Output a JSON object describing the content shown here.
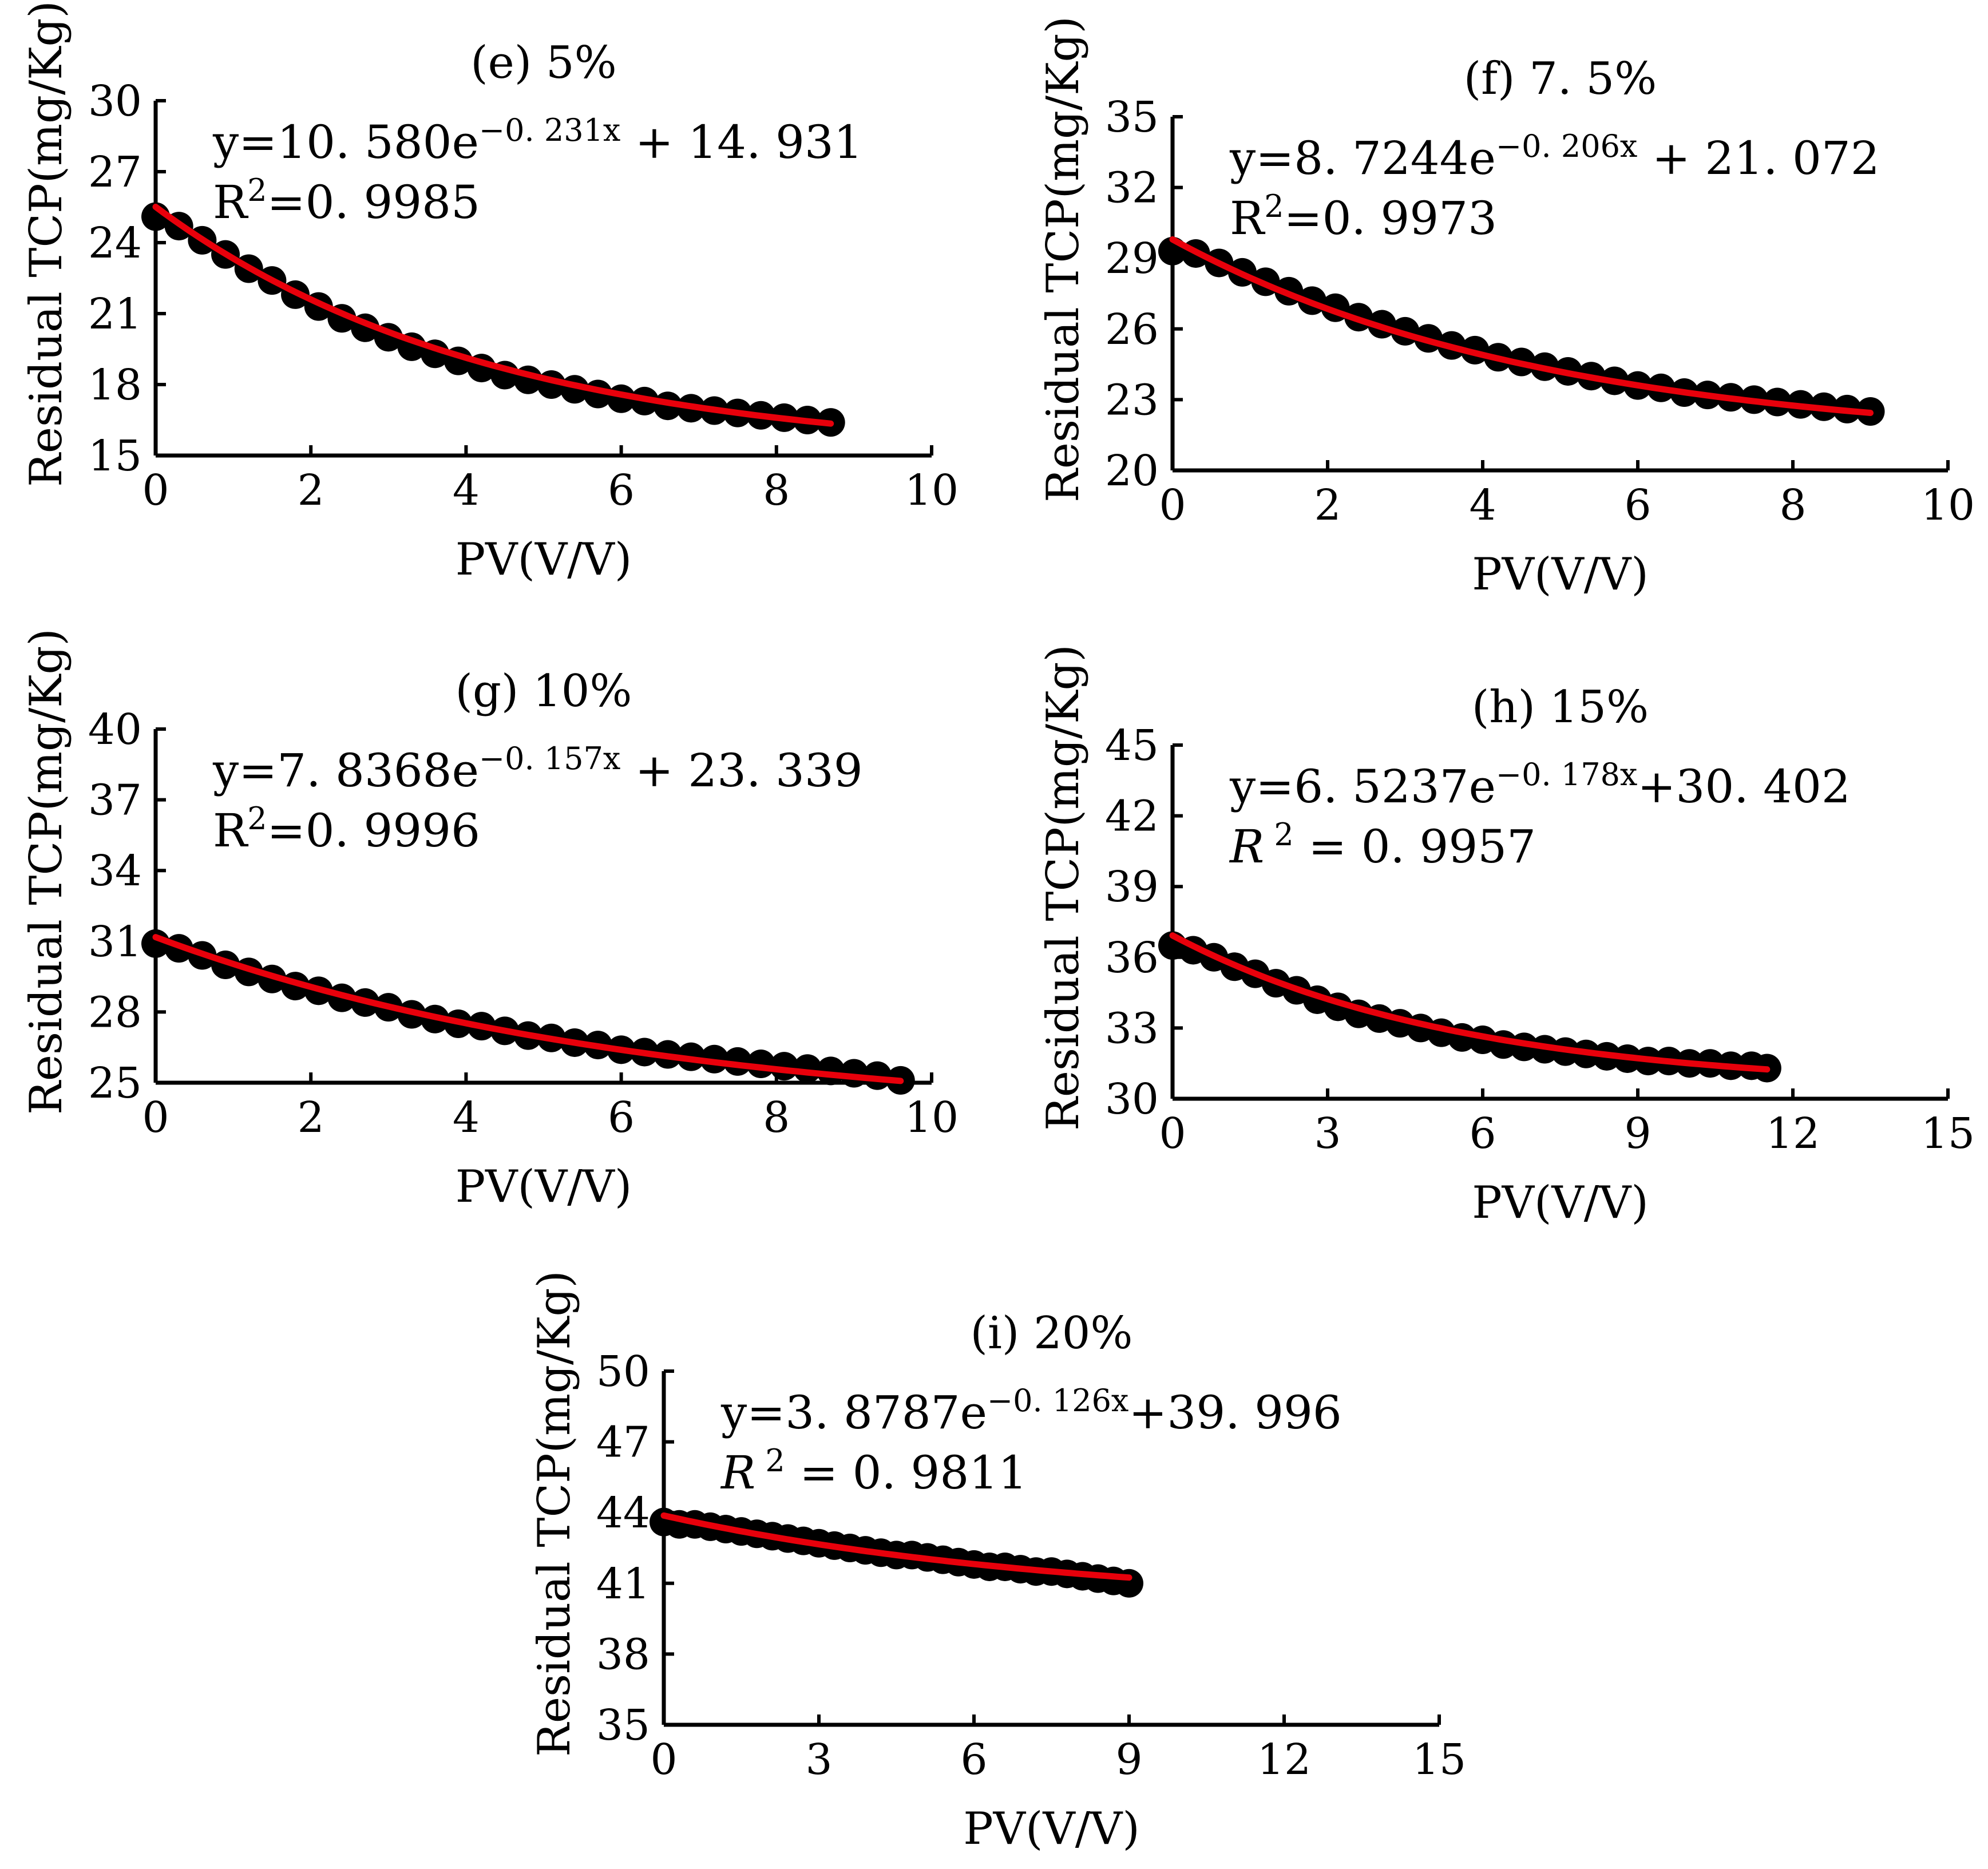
{
  "chart_data": [
    {
      "id": "e",
      "type": "scatter",
      "title": "(e)  5%",
      "xlabel": "PV(V/V)",
      "ylabel": "Residual  TCP(mg/Kg)",
      "xlim": [
        0,
        10
      ],
      "ylim": [
        15,
        30
      ],
      "xticks": [
        0,
        2,
        4,
        6,
        8,
        10
      ],
      "yticks": [
        15,
        18,
        21,
        24,
        27,
        30
      ],
      "fit": {
        "a": 10.58,
        "b": 0.231,
        "c": 14.931
      },
      "x_max": 8.7,
      "equation": {
        "prefix": "y=10. 580e",
        "exponent": "−0. 231x",
        "suffix": " +  14. 931"
      },
      "r2": {
        "label": "R",
        "sup": "2",
        "value": "=0. 9985",
        "italic": false
      },
      "series": [
        {
          "x": [
            0.0,
            0.3,
            0.6,
            0.9,
            1.2,
            1.5,
            1.8,
            2.1,
            2.4,
            2.7,
            3.0,
            3.3,
            3.6,
            3.9,
            4.2,
            4.5,
            4.8,
            5.1,
            5.4,
            5.7,
            6.0,
            6.3,
            6.6,
            6.9,
            7.2,
            7.5,
            7.8,
            8.1,
            8.4,
            8.7
          ],
          "y": [
            25.1,
            24.7,
            24.1,
            23.5,
            22.9,
            22.4,
            21.8,
            21.3,
            20.8,
            20.4,
            20.0,
            19.6,
            19.3,
            19.0,
            18.7,
            18.4,
            18.2,
            18.0,
            17.8,
            17.6,
            17.4,
            17.3,
            17.1,
            17.0,
            16.9,
            16.8,
            16.7,
            16.6,
            16.5,
            16.4
          ]
        }
      ]
    },
    {
      "id": "f",
      "type": "scatter",
      "title": "(f)  7. 5%",
      "xlabel": "PV(V/V)",
      "ylabel": "Residual  TCP(mg/Kg)",
      "xlim": [
        0,
        10
      ],
      "ylim": [
        20,
        35
      ],
      "xticks": [
        0,
        2,
        4,
        6,
        8,
        10
      ],
      "yticks": [
        20,
        23,
        26,
        29,
        32,
        35
      ],
      "fit": {
        "a": 8.7244,
        "b": 0.206,
        "c": 21.072
      },
      "x_max": 9.0,
      "equation": {
        "prefix": "y=8. 7244e",
        "exponent": "−0. 206x",
        "suffix": " +  21. 072"
      },
      "r2": {
        "label": "R",
        "sup": "2",
        "value": "=0. 9973",
        "italic": false
      },
      "series": [
        {
          "x": [
            0.0,
            0.3,
            0.6,
            0.9,
            1.2,
            1.5,
            1.8,
            2.1,
            2.4,
            2.7,
            3.0,
            3.3,
            3.6,
            3.9,
            4.2,
            4.5,
            4.8,
            5.1,
            5.4,
            5.7,
            6.0,
            6.3,
            6.6,
            6.9,
            7.2,
            7.5,
            7.8,
            8.1,
            8.4,
            8.7,
            9.0
          ],
          "y": [
            29.3,
            29.2,
            28.8,
            28.4,
            28.0,
            27.6,
            27.2,
            26.9,
            26.5,
            26.2,
            25.9,
            25.6,
            25.3,
            25.1,
            24.8,
            24.6,
            24.4,
            24.2,
            24.0,
            23.8,
            23.6,
            23.5,
            23.3,
            23.2,
            23.1,
            23.0,
            22.9,
            22.8,
            22.7,
            22.6,
            22.5
          ]
        }
      ]
    },
    {
      "id": "g",
      "type": "scatter",
      "title": "(g) 10%",
      "xlabel": "PV(V/V)",
      "ylabel": "Residual  TCP(mg/Kg)",
      "xlim": [
        0,
        10
      ],
      "ylim": [
        25,
        40
      ],
      "xticks": [
        0,
        2,
        4,
        6,
        8,
        10
      ],
      "yticks": [
        25,
        28,
        31,
        34,
        37,
        40
      ],
      "fit": {
        "a": 7.8368,
        "b": 0.157,
        "c": 23.339
      },
      "x_max": 9.6,
      "equation": {
        "prefix": "y=7. 8368e",
        "exponent": "−0. 157x",
        "suffix": " +  23. 339"
      },
      "r2": {
        "label": "R",
        "sup": "2",
        "value": "=0. 9996",
        "italic": false
      },
      "series": [
        {
          "x": [
            0.0,
            0.3,
            0.6,
            0.9,
            1.2,
            1.5,
            1.8,
            2.1,
            2.4,
            2.7,
            3.0,
            3.3,
            3.6,
            3.9,
            4.2,
            4.5,
            4.8,
            5.1,
            5.4,
            5.7,
            6.0,
            6.3,
            6.6,
            6.9,
            7.2,
            7.5,
            7.8,
            8.1,
            8.4,
            8.7,
            9.0,
            9.3,
            9.6
          ],
          "y": [
            30.9,
            30.7,
            30.4,
            30.0,
            29.7,
            29.4,
            29.1,
            28.9,
            28.6,
            28.4,
            28.2,
            27.9,
            27.7,
            27.5,
            27.4,
            27.2,
            27.0,
            26.9,
            26.7,
            26.6,
            26.4,
            26.3,
            26.2,
            26.1,
            26.0,
            25.9,
            25.8,
            25.7,
            25.6,
            25.5,
            25.4,
            25.3,
            25.1
          ]
        }
      ]
    },
    {
      "id": "h",
      "type": "scatter",
      "title": "(h)  15%",
      "xlabel": "PV(V/V)",
      "ylabel": "Residual  TCP(mg/Kg)",
      "xlim": [
        0,
        15
      ],
      "ylim": [
        30,
        45
      ],
      "xticks": [
        0,
        3,
        6,
        9,
        12,
        15
      ],
      "yticks": [
        30,
        33,
        36,
        39,
        42,
        45
      ],
      "fit": {
        "a": 6.5237,
        "b": 0.178,
        "c": 30.402
      },
      "x_max": 11.5,
      "equation": {
        "prefix": "y=6. 5237e",
        "exponent": "−0. 178x",
        "suffix": "+30. 402"
      },
      "r2": {
        "label": "R",
        "sup": " 2",
        "value": " =  0. 9957",
        "italic": true
      },
      "series": [
        {
          "x": [
            0.0,
            0.4,
            0.8,
            1.2,
            1.6,
            2.0,
            2.4,
            2.8,
            3.2,
            3.6,
            4.0,
            4.4,
            4.8,
            5.2,
            5.6,
            6.0,
            6.4,
            6.8,
            7.2,
            7.6,
            8.0,
            8.4,
            8.8,
            9.2,
            9.6,
            10.0,
            10.4,
            10.8,
            11.2,
            11.5
          ],
          "y": [
            36.5,
            36.3,
            36.0,
            35.6,
            35.3,
            34.9,
            34.6,
            34.2,
            33.9,
            33.6,
            33.4,
            33.2,
            33.0,
            32.8,
            32.6,
            32.5,
            32.3,
            32.2,
            32.1,
            32.0,
            31.9,
            31.8,
            31.7,
            31.6,
            31.6,
            31.5,
            31.5,
            31.4,
            31.4,
            31.3
          ]
        }
      ]
    },
    {
      "id": "i",
      "type": "scatter",
      "title": "(i)  20%",
      "xlabel": "PV(V/V)",
      "ylabel": "Residual  TCP(mg/Kg)",
      "xlim": [
        0,
        15
      ],
      "ylim": [
        35,
        50
      ],
      "xticks": [
        0,
        3,
        6,
        9,
        12,
        15
      ],
      "yticks": [
        35,
        38,
        41,
        44,
        47,
        50
      ],
      "fit": {
        "a": 3.8787,
        "b": 0.126,
        "c": 39.996
      },
      "x_max": 9.0,
      "equation": {
        "prefix": "y=3. 8787e",
        "exponent": "−0. 126x",
        "suffix": "+39. 996"
      },
      "r2": {
        "label": "R",
        "sup": " 2",
        "value": " =  0. 9811",
        "italic": true
      },
      "series": [
        {
          "x": [
            0.0,
            0.3,
            0.6,
            0.9,
            1.2,
            1.5,
            1.8,
            2.1,
            2.4,
            2.7,
            3.0,
            3.3,
            3.6,
            3.9,
            4.2,
            4.5,
            4.8,
            5.1,
            5.4,
            5.7,
            6.0,
            6.3,
            6.6,
            6.9,
            7.2,
            7.5,
            7.8,
            8.1,
            8.4,
            8.7,
            9.0
          ],
          "y": [
            43.6,
            43.5,
            43.5,
            43.4,
            43.3,
            43.2,
            43.1,
            43.0,
            42.9,
            42.8,
            42.7,
            42.6,
            42.5,
            42.4,
            42.3,
            42.2,
            42.2,
            42.1,
            42.0,
            41.9,
            41.8,
            41.7,
            41.7,
            41.6,
            41.5,
            41.5,
            41.4,
            41.3,
            41.2,
            41.1,
            41.0
          ]
        }
      ]
    }
  ],
  "colors": {
    "points": "#000000",
    "fit_line": "#e8000b",
    "axes": "#000000"
  }
}
